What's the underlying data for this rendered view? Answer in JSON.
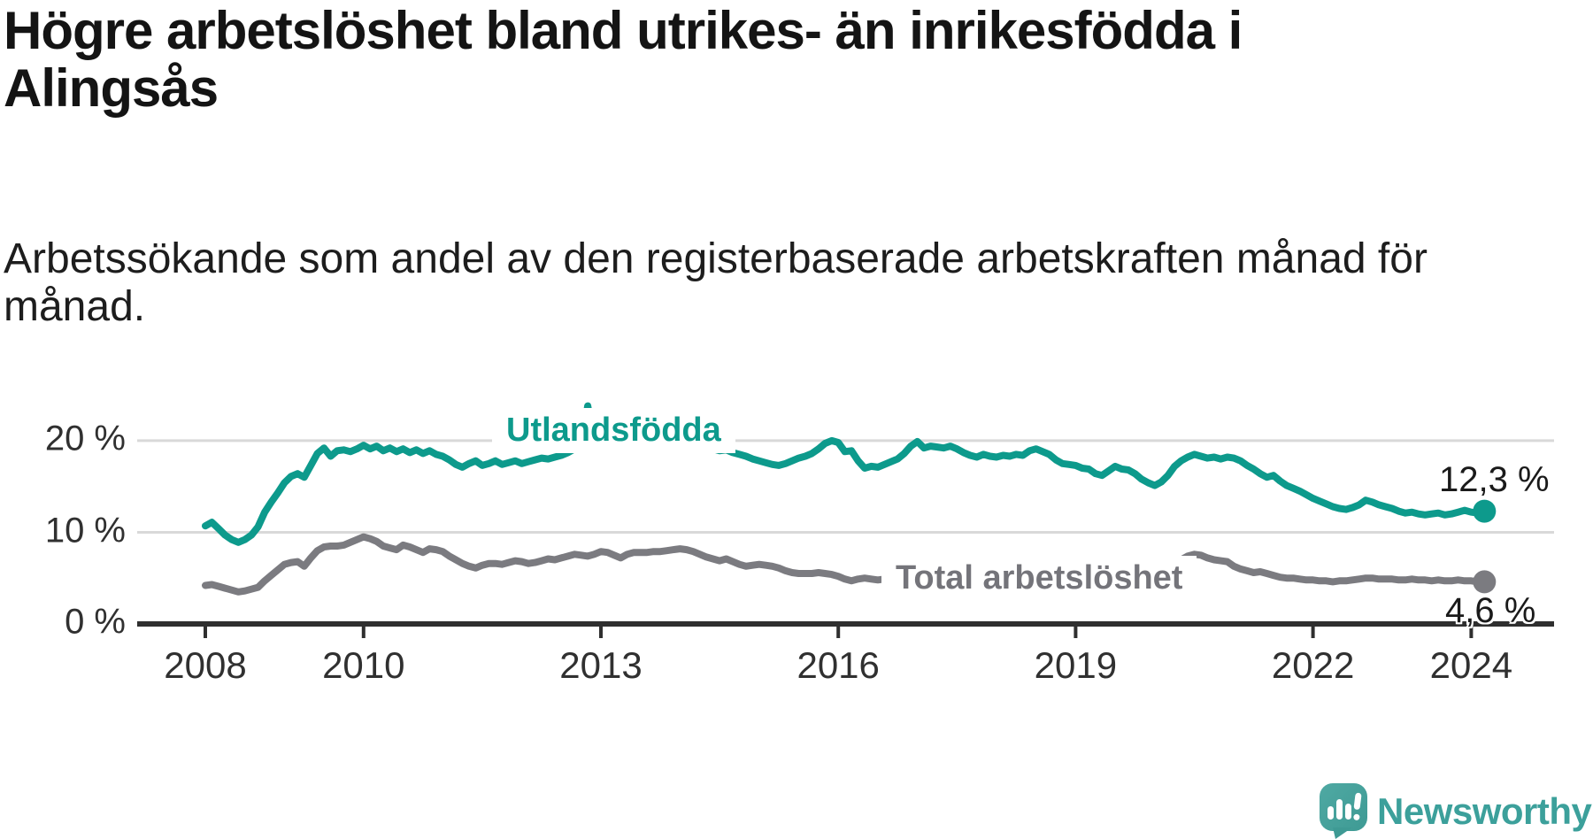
{
  "header": {
    "title": "Högre arbetslöshet bland utrikes- än inrikesfödda i\nAlingsås",
    "subtitle": "Arbetssökande som andel av den registerbaserade arbetskraften månad för\nmånad."
  },
  "chart_data": {
    "type": "line",
    "title": "Högre arbetslöshet bland utrikes- än inrikesfödda i Alingsås",
    "subtitle": "Arbetssökande som andel av den registerbaserade arbetskraften månad för månad.",
    "x_start": "2008-01",
    "x_interval": "month",
    "grid": "horizontal",
    "legend_position": "direct-labels-on-lines",
    "ylim": [
      0,
      24
    ],
    "y_ticks": [
      {
        "label": "0 %",
        "value": 0
      },
      {
        "label": "10 %",
        "value": 10
      },
      {
        "label": "20 %",
        "value": 20
      }
    ],
    "x_ticks": [
      {
        "label": "2008",
        "year": 2008
      },
      {
        "label": "2010",
        "year": 2010
      },
      {
        "label": "2013",
        "year": 2013
      },
      {
        "label": "2016",
        "year": 2016
      },
      {
        "label": "2019",
        "year": 2019
      },
      {
        "label": "2022",
        "year": 2022
      },
      {
        "label": "2024",
        "year": 2024
      }
    ],
    "series": [
      {
        "name": "Utlandsfödda",
        "color": "#0d9a8c",
        "end_label": "12,3 %",
        "end_value": 12.3,
        "values": [
          10.7,
          11.1,
          10.4,
          9.7,
          9.2,
          8.9,
          9.2,
          9.7,
          10.6,
          12.2,
          13.3,
          14.3,
          15.4,
          16.1,
          16.4,
          16.0,
          17.3,
          18.6,
          19.2,
          18.3,
          18.9,
          19.0,
          18.8,
          19.1,
          19.5,
          19.1,
          19.4,
          18.9,
          19.2,
          18.8,
          19.1,
          18.7,
          19.0,
          18.6,
          18.9,
          18.5,
          18.3,
          17.9,
          17.4,
          17.1,
          17.5,
          17.8,
          17.3,
          17.5,
          17.8,
          17.4,
          17.6,
          17.8,
          17.5,
          17.7,
          17.9,
          18.1,
          18.0,
          18.2,
          18.4,
          18.7,
          19.1,
          19.4,
          23.8,
          19.8,
          19.5,
          19.3,
          19.5,
          19.2,
          19.4,
          19.6,
          19.3,
          19.5,
          19.7,
          19.5,
          19.6,
          19.7,
          19.5,
          19.6,
          19.4,
          19.2,
          19.3,
          19.1,
          18.9,
          19.0,
          18.7,
          18.5,
          18.3,
          18.0,
          17.8,
          17.6,
          17.4,
          17.3,
          17.5,
          17.8,
          18.1,
          18.3,
          18.6,
          19.1,
          19.7,
          20.0,
          19.8,
          18.8,
          18.9,
          17.8,
          17.0,
          17.2,
          17.1,
          17.4,
          17.7,
          18.0,
          18.6,
          19.4,
          19.9,
          19.2,
          19.4,
          19.3,
          19.2,
          19.4,
          19.1,
          18.7,
          18.4,
          18.2,
          18.5,
          18.3,
          18.2,
          18.4,
          18.3,
          18.5,
          18.4,
          18.9,
          19.1,
          18.8,
          18.5,
          17.9,
          17.5,
          17.4,
          17.3,
          17.0,
          16.9,
          16.4,
          16.2,
          16.7,
          17.2,
          16.9,
          16.8,
          16.4,
          15.8,
          15.4,
          15.1,
          15.5,
          16.2,
          17.2,
          17.8,
          18.2,
          18.5,
          18.3,
          18.1,
          18.2,
          18.0,
          18.2,
          18.1,
          17.8,
          17.3,
          16.9,
          16.4,
          16.0,
          16.2,
          15.6,
          15.1,
          14.8,
          14.5,
          14.1,
          13.7,
          13.4,
          13.1,
          12.8,
          12.6,
          12.5,
          12.7,
          13.0,
          13.5,
          13.3,
          13.0,
          12.8,
          12.6,
          12.3,
          12.1,
          12.2,
          12.0,
          11.9,
          12.0,
          12.1,
          11.9,
          12.0,
          12.2,
          12.4,
          12.2,
          12.1,
          12.3
        ]
      },
      {
        "name": "Total arbetslöshet",
        "color": "#7b7b80",
        "end_label": "4,6 %",
        "end_value": 4.6,
        "values": [
          4.2,
          4.3,
          4.1,
          3.9,
          3.7,
          3.5,
          3.6,
          3.8,
          4.0,
          4.7,
          5.3,
          5.9,
          6.5,
          6.7,
          6.8,
          6.3,
          7.2,
          8.0,
          8.4,
          8.5,
          8.5,
          8.6,
          8.9,
          9.2,
          9.5,
          9.3,
          9.0,
          8.5,
          8.3,
          8.1,
          8.6,
          8.4,
          8.1,
          7.8,
          8.2,
          8.1,
          7.9,
          7.4,
          7.0,
          6.6,
          6.3,
          6.1,
          6.4,
          6.6,
          6.6,
          6.5,
          6.7,
          6.9,
          6.8,
          6.6,
          6.7,
          6.9,
          7.1,
          7.0,
          7.2,
          7.4,
          7.6,
          7.5,
          7.4,
          7.6,
          7.9,
          7.8,
          7.5,
          7.2,
          7.6,
          7.8,
          7.8,
          7.8,
          7.9,
          7.9,
          8.0,
          8.1,
          8.2,
          8.1,
          7.9,
          7.6,
          7.3,
          7.1,
          6.9,
          7.1,
          6.8,
          6.5,
          6.3,
          6.4,
          6.5,
          6.4,
          6.3,
          6.1,
          5.8,
          5.6,
          5.5,
          5.5,
          5.5,
          5.6,
          5.5,
          5.4,
          5.2,
          4.9,
          4.7,
          4.9,
          5.0,
          4.9,
          4.8,
          4.9,
          5.0,
          4.9,
          4.8,
          4.7,
          4.7,
          4.6,
          4.6,
          4.5,
          4.5,
          4.6,
          4.5,
          4.4,
          4.4,
          4.3,
          4.3,
          4.4,
          4.4,
          4.3,
          4.2,
          4.2,
          4.1,
          4.2,
          4.3,
          4.2,
          4.1,
          4.2,
          4.3,
          4.4,
          4.4,
          4.3,
          4.3,
          4.2,
          4.3,
          4.4,
          4.6,
          4.5,
          4.4,
          4.5,
          4.6,
          4.7,
          4.8,
          5.0,
          5.8,
          6.5,
          7.0,
          7.4,
          7.6,
          7.5,
          7.2,
          7.0,
          6.9,
          6.8,
          6.3,
          6.0,
          5.8,
          5.6,
          5.7,
          5.5,
          5.3,
          5.1,
          5.0,
          5.0,
          4.9,
          4.8,
          4.8,
          4.7,
          4.7,
          4.6,
          4.7,
          4.7,
          4.8,
          4.9,
          5.0,
          5.0,
          4.9,
          4.9,
          4.9,
          4.8,
          4.8,
          4.9,
          4.8,
          4.8,
          4.7,
          4.8,
          4.7,
          4.7,
          4.8,
          4.7,
          4.7,
          4.6,
          4.6
        ]
      }
    ]
  },
  "footer": {
    "brand": "Newsworthy",
    "brand_color": "#3ca09b",
    "logo_icon": "newsworthy-speech-bubble-chart-icon"
  }
}
